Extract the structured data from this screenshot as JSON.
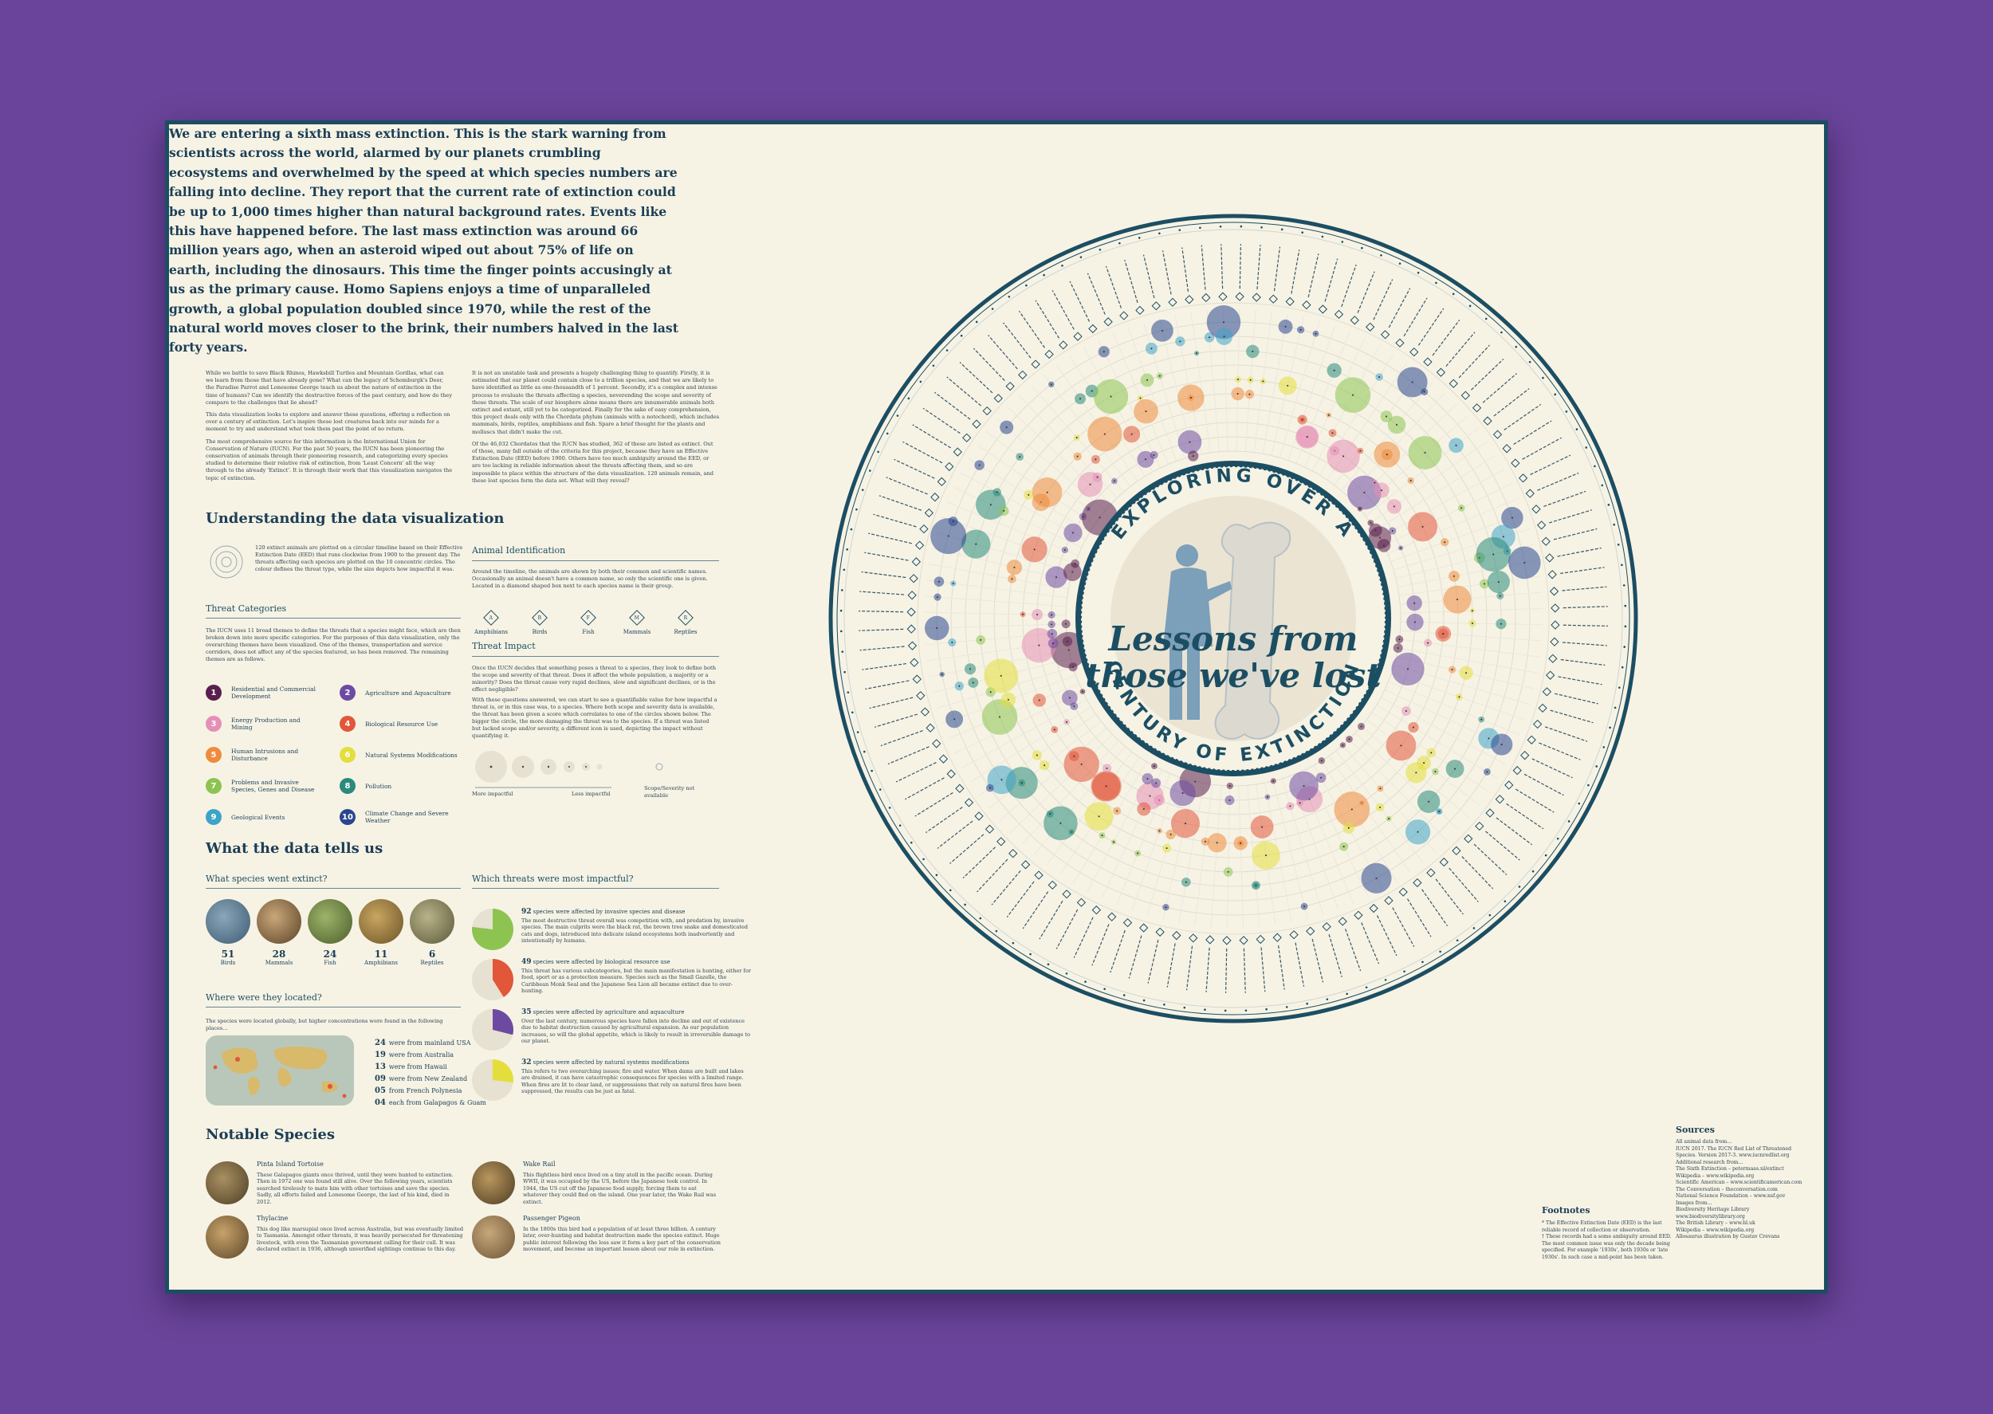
{
  "intro": "We are entering a sixth mass extinction. This is the stark warning from scientists across the world, alarmed by our planets crumbling ecosystems and overwhelmed by the speed at which species numbers are falling into decline. They report that the current rate of extinction could be up to 1,000 times higher than natural background rates. Events like this have happened before. The last mass extinction was around 66 million years ago, when an asteroid wiped out about 75% of life on earth, including the dinosaurs. This time the finger points accusingly at us as the primary cause. Homo Sapiens enjoys a time of unparalleled growth, a global population doubled since 1970, while the rest of the natural world moves closer to the brink, their numbers halved in the last forty years.",
  "col_left": [
    "While we battle to save Black Rhinos, Hawksbill Turtles and Mountain Gorillas, what can we learn from those that have already gone? What can the legacy of Schomburgk's Deer, the Paradise Parrot and Lonesome George teach us about the nature of extinction in the time of humans? Can we identify the destructive forces of the past century, and how do they compare to the challenges that lie ahead?",
    "This data visualization looks to explore and answer these questions, offering a reflection on over a century of extinction. Let's inspire these lost creatures back into our minds for a moment to try and understand what took them past the point of no return.",
    "The most comprehensive source for this information is the International Union for Conservation of Nature (IUCN). For the past 50 years, the IUCN has been pioneering the conservation of animals through their pioneering research, and categorizing every species studied to determine their relative risk of extinction, from 'Least Concern' all the way through to the already 'Extinct'. It is through their work that this visualization navigates the topic of extinction."
  ],
  "col_right": [
    "It is not an unstable task and presents a hugely challenging thing to quantify. Firstly, it is estimated that our planet could contain close to a trillion species, and that we are likely to have identified as little as one-thousandth of 1 percent. Secondly, it's a complex and intense process to evaluate the threats affecting a species, neverending the scope and severity of those threats. The scale of our biosphere alone means there are innumerable animals both extinct and extant, still yet to be categorized. Finally for the sake of easy comprehension, this project deals only with the Chordata phylum (animals with a notochord), which includes mammals, birds, reptiles, amphibians and fish. Spare a brief thought for the plants and molluscs that didn't make the cut.",
    "Of the 46,032 Chordates that the IUCN has studied, 362 of these are listed as extinct. Out of those, many fall outside of the criteria for this project, because they have an Effective Extinction Date (EED) before 1900. Others have too much ambiguity around the EED, or are too lacking in reliable information about the threats affecting them, and so are impossible to place within the structure of the data visualization. 120 animals remain, and these lost species form the data set. What will they reveal?"
  ],
  "understanding": {
    "heading": "Understanding the data visualization",
    "timeline_text": "120 extinct animals are plotted on a circular timeline based on their Effective Extinction Date (EED) that runs clockwise from 1900 to the present day. The threats affecting each species are plotted on the 10 concentric circles. The colour defines the threat type, while the size depicts how impactful it was.",
    "threat_heading": "Threat Categories",
    "threat_text": "The IUCN uses 11 broad themes to define the threats that a species might face, which are then broken down into more specific categories. For the purposes of this data visualization, only the overarching themes have been visualized. One of the themes, transportation and service corridors, does not affect any of the species featured, so has been removed. The remaining themes are as follows.",
    "threats": [
      {
        "n": "1",
        "label": "Residential and Commercial Development",
        "color": "#5a1f4f"
      },
      {
        "n": "2",
        "label": "Agriculture and Aquaculture",
        "color": "#6d4aa2"
      },
      {
        "n": "3",
        "label": "Energy Production and Mining",
        "color": "#e58fb7"
      },
      {
        "n": "4",
        "label": "Biological Resource Use",
        "color": "#e2563a"
      },
      {
        "n": "5",
        "label": "Human Intrusions and Disturbance",
        "color": "#ef8b3c"
      },
      {
        "n": "6",
        "label": "Natural Systems Modifications",
        "color": "#e4de3c"
      },
      {
        "n": "7",
        "label": "Problems and Invasive Species, Genes and Disease",
        "color": "#8dc451"
      },
      {
        "n": "8",
        "label": "Pollution",
        "color": "#2a8a7c"
      },
      {
        "n": "9",
        "label": "Geological Events",
        "color": "#3fa3c8"
      },
      {
        "n": "10",
        "label": "Climate Change and Severe Weather",
        "color": "#2a468f"
      }
    ],
    "animal_heading": "Animal Identification",
    "animal_text": "Around the timeline, the animals are shown by both their common and scientific names. Occasionally an animal doesn't have a common name, so only the scientific one is given. Located in a diamond shaped box next to each species name is their group.",
    "animal_types": [
      {
        "code": "A",
        "label": "Amphibians"
      },
      {
        "code": "B",
        "label": "Birds"
      },
      {
        "code": "F",
        "label": "Fish"
      },
      {
        "code": "M",
        "label": "Mammals"
      },
      {
        "code": "R",
        "label": "Reptiles"
      }
    ],
    "impact_heading": "Threat Impact",
    "impact_text1": "Once the IUCN decides that something poses a threat to a species, they look to define both the scope and severity of that threat. Does it affect the whole population, a majority or a minority? Does the threat cause very rapid declines, slow and significant declines, or is the effect negligible?",
    "impact_text2": "With these questions answered, we can start to see a quantifiable value for how impactful a threat is, or in this case was, to a species. Where both scope and severity data is available, the threat has been given a score which correlates to one of the circles shown below. The bigger the circle, the more damaging the threat was to the species. If a threat was listed but lacked scope and/or severity, a different icon is used, depicting the impact without quantifying it.",
    "more": "More impactful",
    "less": "Less impactful",
    "na": "Scope/Severity not available"
  },
  "tells": {
    "heading": "What the data tells us",
    "species_heading": "What species went extinct?",
    "species": [
      {
        "count": "51",
        "label": "Birds"
      },
      {
        "count": "28",
        "label": "Mammals"
      },
      {
        "count": "24",
        "label": "Fish"
      },
      {
        "count": "11",
        "label": "Amphibians"
      },
      {
        "count": "6",
        "label": "Reptiles"
      }
    ],
    "located_heading": "Where were they located?",
    "located_text": "The species were located globally, but higher concentrations were found in the following places...",
    "locations": [
      {
        "n": "24",
        "label": "were from mainland USA"
      },
      {
        "n": "19",
        "label": "were from Australia"
      },
      {
        "n": "13",
        "label": "were from Hawaii"
      },
      {
        "n": "09",
        "label": "were from New Zealand"
      },
      {
        "n": "05",
        "label": "from French Polynesia"
      },
      {
        "n": "04",
        "label": "each from Galapagos & Guam"
      }
    ],
    "threats_heading": "Which threats were most impactful?",
    "impacts": [
      {
        "lead": "92",
        "title": "species were affected by invasive species and disease",
        "text": "The most destructive threat overall was competition with, and predation by, invasive species. The main culprits were the black rat, the brown tree snake and domesticated cats and dogs, introduced into delicate island ecosystems both inadvertently and intentionally by humans.",
        "color": "#8dc451",
        "pct": 0.77
      },
      {
        "lead": "49",
        "title": "species were affected by biological resource use",
        "text": "This threat has various subcategories, but the main manifestation is hunting, either for food, sport or as a protection measure. Species such as the Small Gazelle, the Caribbean Monk Seal and the Japanese Sea Lion all became extinct due to over-hunting.",
        "color": "#e2563a",
        "pct": 0.41
      },
      {
        "lead": "35",
        "title": "species were affected by agriculture and aquaculture",
        "text": "Over the last century, numerous species have fallen into decline and out of existence due to habitat destruction caused by agricultural expansion. As our population increases, so will the global appetite, which is likely to result in irreversible damage to our planet.",
        "color": "#6d4aa2",
        "pct": 0.29
      },
      {
        "lead": "32",
        "title": "species were affected by natural systems modifications",
        "text": "This refers to two overarching issues; fire and water. When dams are built and lakes are drained, it can have catastrophic consequences for species with a limited range. When fires are lit to clear land, or suppressions that rely on natural fires have been suppressed, the results can be just as fatal.",
        "color": "#e4de3c",
        "pct": 0.27
      }
    ]
  },
  "notable": {
    "heading": "Notable Species",
    "items": [
      {
        "name": "Pinta Island Tortoise",
        "text": "These Galapagos giants once thrived, until they were hunted to extinction. Then in 1972 one was found still alive. Over the following years, scientists searched tirelessly to mate him with other tortoises and save the species. Sadly, all efforts failed and Lonesome George, the last of his kind, died in 2012."
      },
      {
        "name": "Thylacine",
        "text": "This dog like marsupial once lived across Australia, but was eventually limited to Tasmania. Amongst other threats, it was heavily persecuted for threatening livestock, with even the Tasmanian government calling for their cull. It was declared extinct in 1936, although unverified sightings continue to this day."
      },
      {
        "name": "Wake Rail",
        "text": "This flightless bird once lived on a tiny atoll in the pacific ocean. During WWII, it was occupied by the US, before the Japanese took control. In 1944, the US cut off the Japanese food supply, forcing them to eat whatever they could find on the island. One year later, the Wake Rail was extinct."
      },
      {
        "name": "Passenger Pigeon",
        "text": "In the 1800s this bird had a population of at least three billion. A century later, over-hunting and habitat destruction made the species extinct. Huge public interest following the loss saw it form a key part of the conservation movement, and become an important lesson about our role in extinction."
      }
    ]
  },
  "center": {
    "arc_top": "EXPLORING OVER A",
    "arc_bottom": "CENTURY OF EXTINCTION",
    "title1": "Lessons from",
    "title2": "those we've lost"
  },
  "sources": {
    "heading": "Sources",
    "lines": [
      "All animal data from...",
      "IUCN 2017. The IUCN Red List of Threatened",
      "Species. Version 2017-3. www.iucnredlist.org",
      "Additional research from...",
      "The Sixth Extinction – petermaas.nl/extinct",
      "Wikipedia – www.wikipedia.org",
      "Scientific American – www.scientificamerican.com",
      "The Conversation – theconversation.com",
      "National Science Foundation – www.nsf.gov",
      "Images from...",
      "Biodiversity Heritage Library",
      "www.biodiversitylibrary.org",
      "The British Library – www.bl.uk",
      "Wikipedia – www.wikipedia.org",
      "Allosaurus illustration by Gustav Crevans"
    ]
  },
  "footnotes": {
    "heading": "Footnotes",
    "lines": [
      "* The Effective Extinction Date (EED) is the last",
      "reliable record of collection or observation.",
      "† These records had a some ambiguity around EED.",
      "The most common issue was only the decade being",
      "specified. For example '1930s', both 1930s or 'late",
      "1930s'. In such case a mid-point has been taken."
    ]
  },
  "chart_data": {
    "type": "radial-bubble-timeline",
    "title": "Lessons from those we've lost",
    "subtitle": "Exploring over a century of extinction",
    "years_range": [
      1900,
      2017
    ],
    "rings": 10,
    "species_count": 120
  }
}
